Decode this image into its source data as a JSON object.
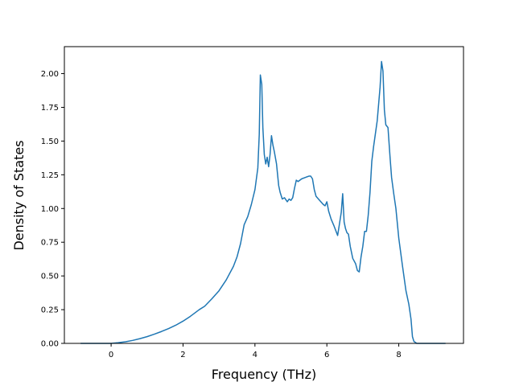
{
  "chart_data": {
    "type": "line",
    "xlabel": "Frequency (THz)",
    "ylabel": "Density of States",
    "xlim": [
      -1.3,
      9.8
    ],
    "ylim": [
      0.0,
      2.2
    ],
    "x_ticks": [
      0,
      2,
      4,
      6,
      8
    ],
    "x_tick_labels": [
      "0",
      "2",
      "4",
      "6",
      "8"
    ],
    "y_ticks": [
      0.0,
      0.25,
      0.5,
      0.75,
      1.0,
      1.25,
      1.5,
      1.75,
      2.0
    ],
    "y_tick_labels": [
      "0.00",
      "0.25",
      "0.50",
      "0.75",
      "1.00",
      "1.25",
      "1.50",
      "1.75",
      "2.00"
    ],
    "grid": false,
    "series": [
      {
        "color": "#1f77b4",
        "x": [
          -0.85,
          -0.4,
          0.0,
          0.2,
          0.4,
          0.6,
          0.8,
          1.0,
          1.2,
          1.4,
          1.6,
          1.8,
          2.0,
          2.2,
          2.35,
          2.45,
          2.6,
          2.8,
          3.0,
          3.2,
          3.4,
          3.5,
          3.6,
          3.7,
          3.8,
          3.9,
          4.0,
          4.08,
          4.12,
          4.15,
          4.19,
          4.22,
          4.26,
          4.3,
          4.34,
          4.38,
          4.42,
          4.46,
          4.5,
          4.54,
          4.6,
          4.66,
          4.7,
          4.76,
          4.82,
          4.9,
          4.95,
          5.0,
          5.05,
          5.1,
          5.15,
          5.2,
          5.3,
          5.4,
          5.5,
          5.55,
          5.6,
          5.65,
          5.7,
          5.8,
          5.9,
          5.95,
          6.0,
          6.05,
          6.12,
          6.2,
          6.3,
          6.4,
          6.44,
          6.48,
          6.52,
          6.56,
          6.6,
          6.65,
          6.72,
          6.8,
          6.85,
          6.9,
          6.95,
          7.0,
          7.05,
          7.1,
          7.15,
          7.2,
          7.25,
          7.3,
          7.4,
          7.48,
          7.52,
          7.56,
          7.6,
          7.64,
          7.7,
          7.76,
          7.8,
          7.86,
          7.92,
          8.0,
          8.1,
          8.2,
          8.28,
          8.34,
          8.38,
          8.42,
          8.5,
          8.6,
          8.8,
          9.0,
          9.3
        ],
        "y": [
          0.0,
          0.0,
          0.0,
          0.005,
          0.012,
          0.022,
          0.035,
          0.05,
          0.068,
          0.088,
          0.11,
          0.135,
          0.165,
          0.2,
          0.23,
          0.25,
          0.275,
          0.33,
          0.39,
          0.47,
          0.57,
          0.64,
          0.74,
          0.88,
          0.94,
          1.03,
          1.14,
          1.3,
          1.55,
          1.99,
          1.92,
          1.6,
          1.4,
          1.33,
          1.38,
          1.31,
          1.4,
          1.54,
          1.47,
          1.42,
          1.33,
          1.17,
          1.12,
          1.07,
          1.08,
          1.05,
          1.07,
          1.06,
          1.08,
          1.15,
          1.21,
          1.2,
          1.22,
          1.23,
          1.24,
          1.24,
          1.22,
          1.14,
          1.09,
          1.06,
          1.03,
          1.02,
          1.05,
          0.98,
          0.92,
          0.87,
          0.8,
          0.97,
          1.11,
          0.9,
          0.85,
          0.82,
          0.81,
          0.72,
          0.63,
          0.59,
          0.54,
          0.53,
          0.64,
          0.72,
          0.83,
          0.83,
          0.95,
          1.12,
          1.35,
          1.46,
          1.65,
          1.9,
          2.09,
          2.02,
          1.73,
          1.62,
          1.6,
          1.37,
          1.23,
          1.11,
          1.0,
          0.78,
          0.58,
          0.39,
          0.29,
          0.18,
          0.05,
          0.015,
          0.0,
          0.0,
          0.0,
          0.0,
          0.0
        ]
      }
    ]
  }
}
